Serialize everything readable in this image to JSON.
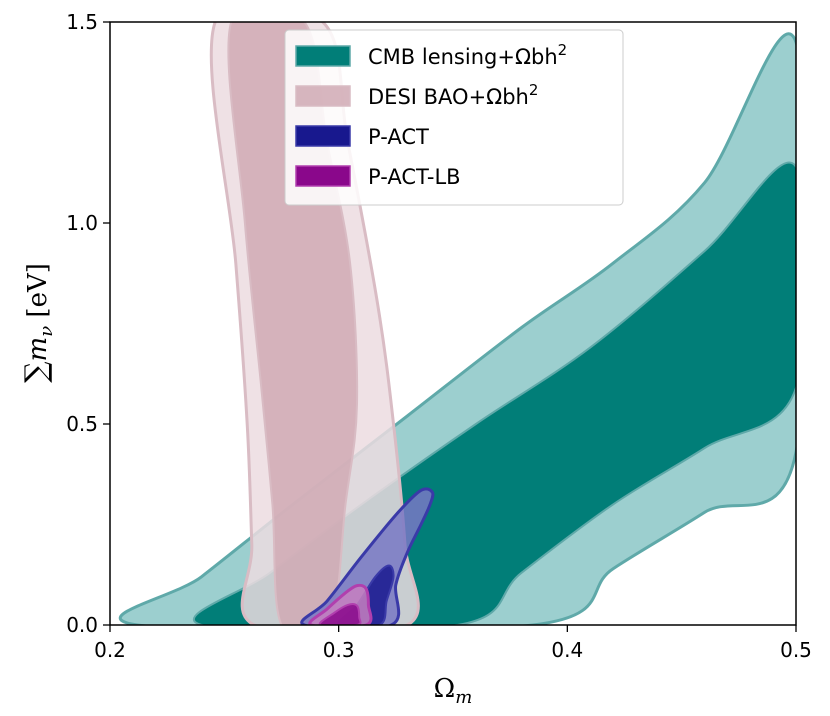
{
  "chart_data": {
    "type": "contour",
    "xlabel": "Ωm",
    "ylabel": "∑mν [eV]",
    "xlim": [
      0.2,
      0.5
    ],
    "ylim": [
      0.0,
      1.5
    ],
    "xticks": [
      0.2,
      0.3,
      0.4,
      0.5
    ],
    "xtick_labels": [
      "0.2",
      "0.3",
      "0.4",
      "0.5"
    ],
    "yticks": [
      0.0,
      0.5,
      1.0,
      1.5
    ],
    "ytick_labels": [
      "0.0",
      "0.5",
      "1.0",
      "1.5"
    ],
    "legend_position": "top-center",
    "series": [
      {
        "name": "CMB lensing+Ωbh²",
        "legend_label": "CMB lensing+Ωbh",
        "legend_sup": "2",
        "color_outer": "#9ccfcf",
        "color_inner": "#017e78",
        "edge": "#5fa9a9",
        "outer": [
          [
            0.212,
            0.0
          ],
          [
            0.24,
            0.12
          ],
          [
            0.28,
            0.3
          ],
          [
            0.33,
            0.52
          ],
          [
            0.38,
            0.74
          ],
          [
            0.42,
            0.9
          ],
          [
            0.46,
            1.1
          ],
          [
            0.5,
            1.45
          ],
          [
            0.5,
            0.43
          ],
          [
            0.46,
            0.28
          ],
          [
            0.42,
            0.14
          ],
          [
            0.385,
            0.0
          ]
        ],
        "inner": [
          [
            0.24,
            0.0
          ],
          [
            0.27,
            0.13
          ],
          [
            0.31,
            0.3
          ],
          [
            0.36,
            0.5
          ],
          [
            0.41,
            0.69
          ],
          [
            0.46,
            0.93
          ],
          [
            0.5,
            1.14
          ],
          [
            0.5,
            0.59
          ],
          [
            0.46,
            0.44
          ],
          [
            0.42,
            0.3
          ],
          [
            0.38,
            0.13
          ],
          [
            0.352,
            0.0
          ]
        ]
      },
      {
        "name": "DESI BAO+Ωbh²",
        "legend_label": "DESI BAO+Ωbh",
        "legend_sup": "2",
        "color_outer": "#ecdce0",
        "color_inner": "#d0a9b4",
        "edge": "#d9bcc4",
        "outer": [
          [
            0.246,
            1.5
          ],
          [
            0.255,
            0.9
          ],
          [
            0.26,
            0.5
          ],
          [
            0.262,
            0.2
          ],
          [
            0.263,
            0.0
          ],
          [
            0.33,
            0.0
          ],
          [
            0.329,
            0.2
          ],
          [
            0.324,
            0.5
          ],
          [
            0.317,
            0.8
          ],
          [
            0.304,
            1.2
          ],
          [
            0.293,
            1.5
          ]
        ],
        "inner": [
          [
            0.253,
            1.5
          ],
          [
            0.259,
            1.0
          ],
          [
            0.266,
            0.6
          ],
          [
            0.271,
            0.3
          ],
          [
            0.275,
            0.0
          ],
          [
            0.296,
            0.0
          ],
          [
            0.303,
            0.3
          ],
          [
            0.308,
            0.55
          ],
          [
            0.305,
            0.9
          ],
          [
            0.295,
            1.2
          ],
          [
            0.285,
            1.5
          ]
        ]
      },
      {
        "name": "P-ACT",
        "legend_label": "P-ACT",
        "color_outer": "#7878c4",
        "color_inner": "#18188e",
        "edge": "#3a3aa8",
        "outer": [
          [
            0.285,
            0.0
          ],
          [
            0.295,
            0.06
          ],
          [
            0.31,
            0.17
          ],
          [
            0.326,
            0.28
          ],
          [
            0.336,
            0.335
          ],
          [
            0.341,
            0.33
          ],
          [
            0.34,
            0.3
          ],
          [
            0.336,
            0.25
          ],
          [
            0.33,
            0.18
          ],
          [
            0.325,
            0.1
          ],
          [
            0.323,
            0.0
          ]
        ],
        "inner": [
          [
            0.3,
            0.0
          ],
          [
            0.308,
            0.05
          ],
          [
            0.316,
            0.12
          ],
          [
            0.322,
            0.148
          ],
          [
            0.324,
            0.12
          ],
          [
            0.321,
            0.06
          ],
          [
            0.318,
            0.0
          ]
        ]
      },
      {
        "name": "P-ACT-LB",
        "legend_label": "P-ACT-LB",
        "color_outer": "#c77fc0",
        "color_inner": "#8a078b",
        "edge": "#b13fae",
        "outer": [
          [
            0.288,
            0.0
          ],
          [
            0.295,
            0.04
          ],
          [
            0.303,
            0.08
          ],
          [
            0.308,
            0.098
          ],
          [
            0.312,
            0.09
          ],
          [
            0.313,
            0.05
          ],
          [
            0.312,
            0.0
          ]
        ],
        "inner": [
          [
            0.292,
            0.0
          ],
          [
            0.298,
            0.03
          ],
          [
            0.304,
            0.05
          ],
          [
            0.308,
            0.048
          ],
          [
            0.309,
            0.02
          ],
          [
            0.308,
            0.0
          ]
        ]
      }
    ]
  }
}
